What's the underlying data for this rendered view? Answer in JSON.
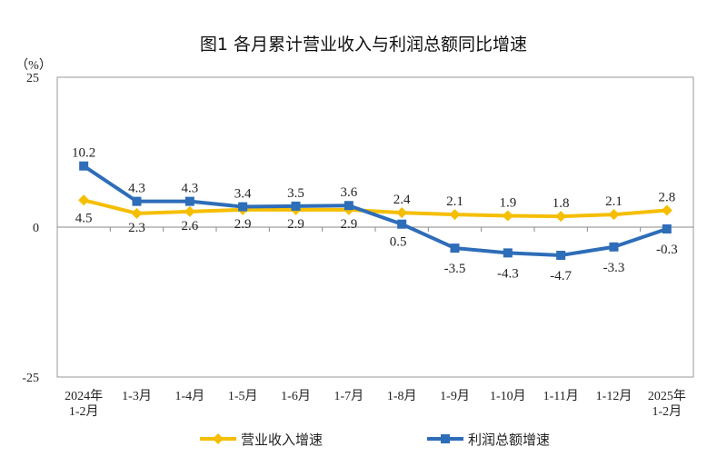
{
  "chart_data": {
    "type": "line",
    "title": "图1  各月累计营业收入与利润总额同比增速",
    "ylabel": "（%）",
    "ylim": [
      -25,
      25
    ],
    "yticks": [
      "25",
      "0",
      "-25"
    ],
    "grid": false,
    "legend_position": "bottom",
    "categories": [
      [
        "2024年",
        "1-2月"
      ],
      [
        "1-3月"
      ],
      [
        "1-4月"
      ],
      [
        "1-5月"
      ],
      [
        "1-6月"
      ],
      [
        "1-7月"
      ],
      [
        "1-8月"
      ],
      [
        "1-9月"
      ],
      [
        "1-10月"
      ],
      [
        "1-11月"
      ],
      [
        "1-12月"
      ],
      [
        "2025年",
        "1-2月"
      ]
    ],
    "series": [
      {
        "name": "营业收入增速",
        "color": "#F5BE00",
        "marker": "diamond",
        "values": [
          4.5,
          2.3,
          2.6,
          2.9,
          2.9,
          2.9,
          2.4,
          2.1,
          1.9,
          1.8,
          2.1,
          2.8
        ]
      },
      {
        "name": "利润总额增速",
        "color": "#2E6DB8",
        "marker": "square",
        "values": [
          10.2,
          4.3,
          4.3,
          3.4,
          3.5,
          3.6,
          0.5,
          -3.5,
          -4.3,
          -4.7,
          -3.3,
          -0.3
        ]
      }
    ]
  }
}
